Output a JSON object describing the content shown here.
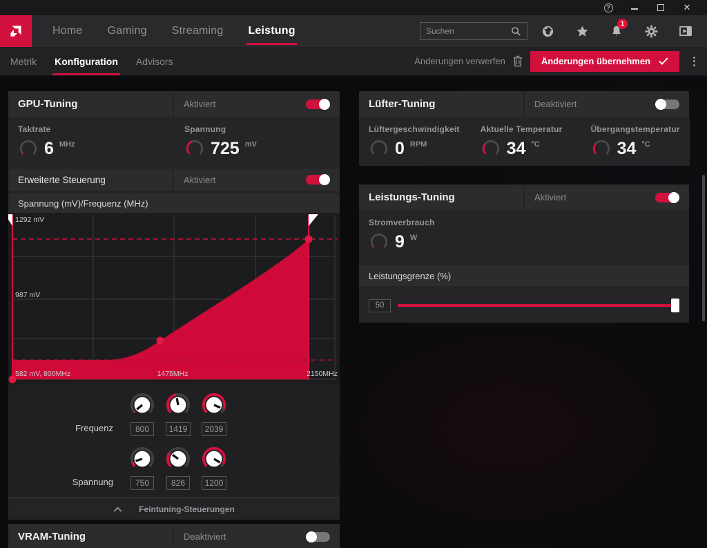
{
  "accent": "#d2103e",
  "titlebar": {
    "icons": [
      "help-icon",
      "minimize-icon",
      "maximize-icon",
      "close-icon"
    ]
  },
  "nav": {
    "items": [
      {
        "label": "Home",
        "active": false
      },
      {
        "label": "Gaming",
        "active": false
      },
      {
        "label": "Streaming",
        "active": false
      },
      {
        "label": "Leistung",
        "active": true
      }
    ],
    "search": {
      "placeholder": "Suchen"
    },
    "icons": [
      "globe-icon",
      "star-icon",
      "bell-icon",
      "gear-icon",
      "panel-toggle-icon"
    ],
    "bell_badge": "1"
  },
  "subnav": {
    "tabs": [
      {
        "label": "Metrik",
        "active": false
      },
      {
        "label": "Konfiguration",
        "active": true
      },
      {
        "label": "Advisors",
        "active": false
      }
    ],
    "discard_label": "Änderungen verwerfen",
    "apply_label": "Änderungen übernehmen"
  },
  "gpu": {
    "title": "GPU-Tuning",
    "state": "Aktiviert",
    "enabled": true,
    "stats": [
      {
        "label": "Taktrate",
        "value": "6",
        "unit": "MHz",
        "fraction": 0.04
      },
      {
        "label": "Spannung",
        "value": "725",
        "unit": "mV",
        "fraction": 0.42
      }
    ],
    "advanced": {
      "label": "Erweiterte Steuerung",
      "state": "Aktiviert",
      "enabled": true
    },
    "chart": {
      "title": "Spannung (mV)/Frequenz (MHz)",
      "y_top_label": "1292 mV",
      "y_mid_label": "987 mV",
      "x_left_label": "582 mV, 800MHz",
      "x_mid_label": "1475MHz",
      "x_right_label": "2150MHz"
    },
    "fine": {
      "freq_label": "Frequenz",
      "volt_label": "Spannung",
      "freq": [
        {
          "value": "800",
          "fraction": 0.02
        },
        {
          "value": "1419",
          "fraction": 0.46
        },
        {
          "value": "2039",
          "fraction": 0.92
        }
      ],
      "volt": [
        {
          "value": "750",
          "fraction": 0.1
        },
        {
          "value": "826",
          "fraction": 0.3
        },
        {
          "value": "1200",
          "fraction": 0.95
        }
      ],
      "footer": "Feintuning-Steuerungen"
    }
  },
  "chart_data": {
    "type": "area",
    "title": "Spannung (mV)/Frequenz (MHz)",
    "x": [
      800,
      1419,
      2039
    ],
    "y": [
      750,
      826,
      1200
    ],
    "xlabel": "Frequenz (MHz)",
    "ylabel": "Spannung (mV)",
    "xlim": [
      800,
      2150
    ],
    "ylim": [
      582,
      1292
    ],
    "annotations": [
      "1292 mV",
      "987 mV",
      "582 mV, 800MHz",
      "1475MHz",
      "2150MHz"
    ]
  },
  "fan": {
    "title": "Lüfter-Tuning",
    "state": "Deaktiviert",
    "enabled": false,
    "stats": [
      {
        "label": "Lüftergeschwindigkeit",
        "value": "0",
        "unit": "RPM",
        "fraction": 0
      },
      {
        "label": "Aktuelle Temperatur",
        "value": "34",
        "unit": "°C",
        "fraction": 0.31
      },
      {
        "label": "Übergangstemperatur",
        "value": "34",
        "unit": "°C",
        "fraction": 0.31
      }
    ]
  },
  "power": {
    "title": "Leistungs-Tuning",
    "state": "Aktiviert",
    "enabled": true,
    "stat": {
      "label": "Stromverbrauch",
      "value": "9",
      "unit": "W",
      "fraction": 0.04
    },
    "limit_label": "Leistungsgrenze (%)",
    "slider": {
      "value": "50",
      "fraction": 1.0
    }
  },
  "vram": {
    "title": "VRAM-Tuning",
    "state": "Deaktiviert",
    "enabled": false
  }
}
